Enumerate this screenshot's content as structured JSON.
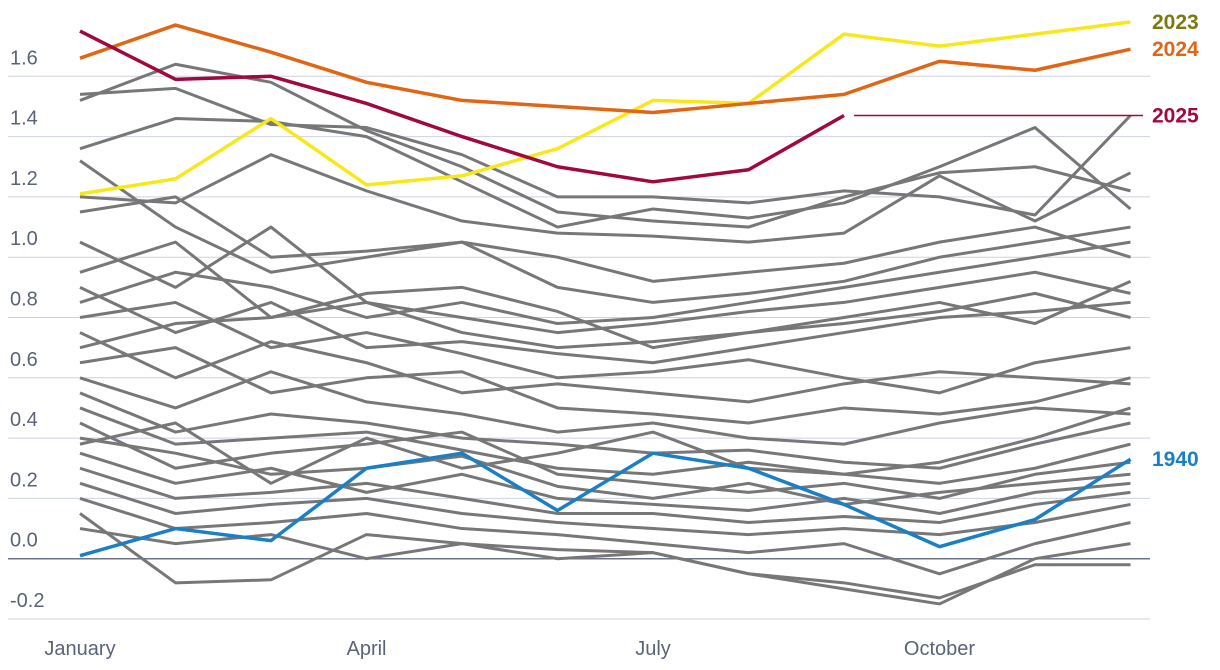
{
  "chart_data": {
    "type": "line",
    "categories": [
      "January",
      null,
      null,
      "April",
      null,
      null,
      "July",
      null,
      null,
      "October",
      null,
      null
    ],
    "ylim": [
      -0.2,
      1.8
    ],
    "yticks": [
      -0.2,
      {
        "value": 0,
        "label": "0.0"
      },
      0.2,
      0.4,
      0.6,
      0.8,
      {
        "value": 1,
        "label": "1.0"
      },
      1.2,
      1.4,
      1.6
    ],
    "grid": true,
    "series": [
      {
        "color": "#777777",
        "values": [
          1.52,
          1.64,
          1.58,
          1.42,
          1.3,
          1.15,
          1.12,
          1.1,
          1.2,
          1.28,
          1.3,
          1.22
        ]
      },
      {
        "color": "#777777",
        "values": [
          1.54,
          1.56,
          1.44,
          1.43,
          1.34,
          1.2,
          1.2,
          1.18,
          1.22,
          1.2,
          1.14,
          1.47
        ]
      },
      {
        "color": "#777777",
        "values": [
          1.36,
          1.46,
          1.45,
          1.4,
          1.25,
          1.1,
          1.16,
          1.13,
          1.18,
          1.3,
          1.43,
          1.16
        ]
      },
      {
        "color": "#777777",
        "values": [
          1.32,
          1.1,
          0.95,
          1.0,
          1.05,
          1.0,
          0.92,
          0.95,
          0.98,
          1.05,
          1.1,
          1.0
        ]
      },
      {
        "color": "#777777",
        "values": [
          1.2,
          1.18,
          1.34,
          1.22,
          1.12,
          1.08,
          1.07,
          1.05,
          1.08,
          1.27,
          1.12,
          1.28
        ]
      },
      {
        "color": "#777777",
        "values": [
          1.15,
          1.2,
          1.0,
          1.02,
          1.05,
          0.9,
          0.85,
          0.88,
          0.92,
          1.0,
          1.05,
          1.1
        ]
      },
      {
        "color": "#777777",
        "values": [
          1.05,
          0.9,
          1.1,
          0.85,
          0.8,
          0.75,
          0.78,
          0.82,
          0.85,
          0.9,
          0.95,
          0.88
        ]
      },
      {
        "color": "#777777",
        "values": [
          0.95,
          1.05,
          0.8,
          0.88,
          0.9,
          0.82,
          0.7,
          0.75,
          0.8,
          0.85,
          0.78,
          0.92
        ]
      },
      {
        "color": "#777777",
        "values": [
          0.9,
          0.75,
          0.85,
          0.7,
          0.72,
          0.68,
          0.65,
          0.7,
          0.75,
          0.8,
          0.82,
          0.85
        ]
      },
      {
        "color": "#777777",
        "values": [
          0.8,
          0.85,
          0.7,
          0.75,
          0.68,
          0.6,
          0.62,
          0.66,
          0.6,
          0.55,
          0.65,
          0.7
        ]
      },
      {
        "color": "#777777",
        "values": [
          0.75,
          0.6,
          0.72,
          0.65,
          0.55,
          0.58,
          0.55,
          0.52,
          0.58,
          0.62,
          0.6,
          0.58
        ]
      },
      {
        "color": "#777777",
        "values": [
          0.65,
          0.7,
          0.55,
          0.6,
          0.62,
          0.5,
          0.48,
          0.45,
          0.5,
          0.48,
          0.52,
          0.6
        ]
      },
      {
        "color": "#777777",
        "values": [
          0.6,
          0.5,
          0.62,
          0.52,
          0.48,
          0.42,
          0.45,
          0.4,
          0.38,
          0.45,
          0.5,
          0.48
        ]
      },
      {
        "color": "#777777",
        "values": [
          0.55,
          0.42,
          0.48,
          0.45,
          0.4,
          0.38,
          0.35,
          0.36,
          0.32,
          0.3,
          0.38,
          0.45
        ]
      },
      {
        "color": "#777777",
        "values": [
          0.5,
          0.38,
          0.4,
          0.42,
          0.36,
          0.3,
          0.28,
          0.32,
          0.28,
          0.25,
          0.3,
          0.38
        ]
      },
      {
        "color": "#777777",
        "values": [
          0.45,
          0.3,
          0.35,
          0.38,
          0.42,
          0.28,
          0.25,
          0.22,
          0.25,
          0.2,
          0.28,
          0.32
        ]
      },
      {
        "color": "#777777",
        "values": [
          0.4,
          0.35,
          0.28,
          0.3,
          0.34,
          0.24,
          0.2,
          0.25,
          0.18,
          0.22,
          0.25,
          0.28
        ]
      },
      {
        "color": "#777777",
        "values": [
          0.35,
          0.25,
          0.3,
          0.22,
          0.28,
          0.2,
          0.18,
          0.16,
          0.2,
          0.15,
          0.22,
          0.25
        ]
      },
      {
        "color": "#777777",
        "values": [
          0.3,
          0.2,
          0.22,
          0.25,
          0.2,
          0.15,
          0.15,
          0.12,
          0.14,
          0.12,
          0.18,
          0.22
        ]
      },
      {
        "color": "#777777",
        "values": [
          0.25,
          0.15,
          0.18,
          0.2,
          0.15,
          0.12,
          0.1,
          0.08,
          0.1,
          0.08,
          0.12,
          0.18
        ]
      },
      {
        "color": "#777777",
        "values": [
          0.2,
          0.1,
          0.12,
          0.15,
          0.1,
          0.08,
          0.05,
          0.02,
          0.05,
          -0.05,
          0.05,
          0.12
        ]
      },
      {
        "color": "#777777",
        "values": [
          0.15,
          -0.08,
          -0.07,
          0.08,
          0.05,
          0.03,
          0.02,
          -0.05,
          -0.08,
          -0.13,
          -0.02,
          -0.02
        ]
      },
      {
        "color": "#777777",
        "values": [
          0.1,
          0.05,
          0.08,
          0.0,
          0.05,
          0.0,
          0.02,
          -0.05,
          -0.1,
          -0.15,
          0.0,
          0.05
        ]
      },
      {
        "color": "#777777",
        "values": [
          0.38,
          0.45,
          0.25,
          0.4,
          0.3,
          0.35,
          0.42,
          0.3,
          0.28,
          0.32,
          0.4,
          0.5
        ]
      },
      {
        "color": "#777777",
        "values": [
          0.85,
          0.95,
          0.9,
          0.8,
          0.85,
          0.78,
          0.8,
          0.85,
          0.9,
          0.95,
          1.0,
          1.05
        ]
      },
      {
        "color": "#777777",
        "values": [
          0.7,
          0.78,
          0.8,
          0.85,
          0.75,
          0.7,
          0.72,
          0.75,
          0.78,
          0.82,
          0.88,
          0.8
        ]
      },
      {
        "name": "1940",
        "color": "#1a7fc4",
        "label_color": "#1a7fc4",
        "values": [
          0.01,
          0.1,
          0.06,
          0.3,
          0.35,
          0.16,
          0.35,
          0.3,
          0.18,
          0.04,
          0.13,
          0.33
        ]
      },
      {
        "name": "2023",
        "color": "#f7e81c",
        "label_color": "#7b7a12",
        "values": [
          1.21,
          1.26,
          1.46,
          1.24,
          1.27,
          1.36,
          1.52,
          1.51,
          1.74,
          1.7,
          1.74,
          1.78
        ]
      },
      {
        "name": "2024",
        "color": "#e06514",
        "label_color": "#e06514",
        "values": [
          1.66,
          1.77,
          1.68,
          1.58,
          1.52,
          1.5,
          1.48,
          1.51,
          1.54,
          1.65,
          1.62,
          1.69
        ]
      },
      {
        "name": "2025",
        "color": "#a0083f",
        "label_color": "#a0083f",
        "values": [
          1.75,
          1.59,
          1.6,
          1.51,
          1.4,
          1.3,
          1.25,
          1.29,
          1.47,
          null,
          null,
          null
        ]
      }
    ]
  }
}
